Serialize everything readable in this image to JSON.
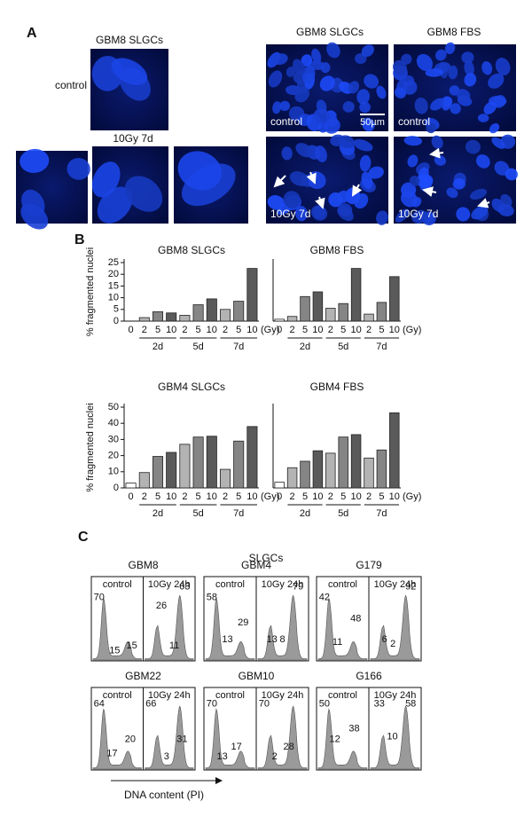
{
  "panel_labels": [
    "A",
    "B",
    "C"
  ],
  "panel_a": {
    "left": {
      "title": "GBM8 SLGCs",
      "control_label": "control",
      "treated_label": "10Gy 7d"
    },
    "right": {
      "columns": [
        "GBM8 SLGCs",
        "GBM8 FBS"
      ],
      "image_labels": [
        "control",
        "control",
        "10Gy 7d",
        "10Gy 7d"
      ],
      "scale_bar": "50µm"
    }
  },
  "chart_data": [
    {
      "type": "bar",
      "title": "GBM8 SLGCs",
      "ylabel": "% fragmented nuclei",
      "unit": "(Gy)",
      "categories": [
        "0",
        "2",
        "5",
        "10",
        "2",
        "5",
        "10",
        "2",
        "5",
        "10"
      ],
      "values": [
        0,
        1.5,
        4,
        3.5,
        2.5,
        7,
        9.5,
        5,
        8.5,
        22.5
      ],
      "colors": [
        "#ffffff",
        "#b3b3b3",
        "#858585",
        "#5a5a5a",
        "#b3b3b3",
        "#858585",
        "#5a5a5a",
        "#b3b3b3",
        "#858585",
        "#5a5a5a"
      ],
      "groups": [
        "2d",
        "5d",
        "7d"
      ],
      "ylim": [
        0,
        25
      ],
      "yticks": [
        0,
        5,
        10,
        15,
        20,
        25
      ]
    },
    {
      "type": "bar",
      "title": "GBM8 FBS",
      "unit": "(Gy)",
      "categories": [
        "0",
        "2",
        "5",
        "10",
        "2",
        "5",
        "10",
        "2",
        "5",
        "10"
      ],
      "values": [
        0.8,
        2,
        10.5,
        12.5,
        5.5,
        7.5,
        22.5,
        3,
        8,
        19
      ],
      "colors": [
        "#ffffff",
        "#b3b3b3",
        "#858585",
        "#5a5a5a",
        "#b3b3b3",
        "#858585",
        "#5a5a5a",
        "#b3b3b3",
        "#858585",
        "#5a5a5a"
      ],
      "groups": [
        "2d",
        "5d",
        "7d"
      ],
      "ylim": [
        0,
        25
      ]
    },
    {
      "type": "bar",
      "title": "GBM4 SLGCs",
      "ylabel": "% fragmented nuclei",
      "unit": "(Gy)",
      "categories": [
        "0",
        "2",
        "5",
        "10",
        "2",
        "5",
        "10",
        "2",
        "5",
        "10"
      ],
      "values": [
        3,
        9.5,
        19.5,
        22,
        27,
        31.5,
        32,
        11.5,
        29,
        38
      ],
      "colors": [
        "#ffffff",
        "#b3b3b3",
        "#858585",
        "#5a5a5a",
        "#b3b3b3",
        "#858585",
        "#5a5a5a",
        "#b3b3b3",
        "#858585",
        "#5a5a5a"
      ],
      "groups": [
        "2d",
        "5d",
        "7d"
      ],
      "ylim": [
        0,
        50
      ],
      "yticks": [
        0,
        10,
        20,
        30,
        40,
        50
      ]
    },
    {
      "type": "bar",
      "title": "GBM4 FBS",
      "unit": "(Gy)",
      "categories": [
        "0",
        "2",
        "5",
        "10",
        "2",
        "5",
        "10",
        "2",
        "5",
        "10"
      ],
      "values": [
        3.5,
        12.5,
        16.5,
        23,
        21.5,
        31.5,
        33,
        18.5,
        23.5,
        46.5
      ],
      "colors": [
        "#ffffff",
        "#b3b3b3",
        "#858585",
        "#5a5a5a",
        "#b3b3b3",
        "#858585",
        "#5a5a5a",
        "#b3b3b3",
        "#858585",
        "#5a5a5a"
      ],
      "groups": [
        "2d",
        "5d",
        "7d"
      ],
      "ylim": [
        0,
        50
      ]
    }
  ],
  "panel_c": {
    "title": "SLGCs",
    "xlabel": "DNA content (PI)",
    "panels": [
      {
        "name": "GBM8",
        "subpanels": [
          {
            "label": "control",
            "numbers": [
              70,
              15,
              15
            ]
          },
          {
            "label": "10Gy 24h",
            "numbers": [
              26,
              63,
              11
            ]
          }
        ]
      },
      {
        "name": "GBM4",
        "subpanels": [
          {
            "label": "control",
            "numbers": [
              58,
              13,
              29
            ]
          },
          {
            "label": "10Gy 24h",
            "numbers": [
              79,
              13,
              8
            ]
          }
        ]
      },
      {
        "name": "G179",
        "subpanels": [
          {
            "label": "control",
            "numbers": [
              42,
              11,
              48
            ]
          },
          {
            "label": "10Gy 24h",
            "numbers": [
              92,
              6,
              2
            ]
          }
        ]
      },
      {
        "name": "GBM22",
        "subpanels": [
          {
            "label": "control",
            "numbers": [
              64,
              17,
              20
            ]
          },
          {
            "label": "10Gy 24h",
            "numbers": [
              66,
              3,
              31
            ]
          }
        ]
      },
      {
        "name": "GBM10",
        "subpanels": [
          {
            "label": "control",
            "numbers": [
              70,
              13,
              17
            ]
          },
          {
            "label": "10Gy 24h",
            "numbers": [
              70,
              2,
              28
            ]
          }
        ]
      },
      {
        "name": "G166",
        "subpanels": [
          {
            "label": "control",
            "numbers": [
              50,
              12,
              38
            ]
          },
          {
            "label": "10Gy 24h",
            "numbers": [
              33,
              58,
              10
            ]
          }
        ]
      }
    ]
  }
}
